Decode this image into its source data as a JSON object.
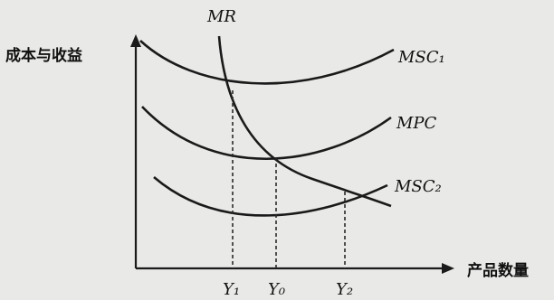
{
  "chart_data": {
    "type": "line",
    "ylabel": "成本与收益",
    "xlabel": "产品数量",
    "series": [
      {
        "name": "MR",
        "label": "MR"
      },
      {
        "name": "MSC1",
        "label": "MSC₁"
      },
      {
        "name": "MPC",
        "label": "MPC"
      },
      {
        "name": "MSC2",
        "label": "MSC₂"
      }
    ],
    "x_ticks": [
      "Y₁",
      "Y₀",
      "Y₂"
    ],
    "grid": false,
    "colors": {
      "line": "#1a1a1a",
      "background": "#e9e9e7"
    }
  }
}
